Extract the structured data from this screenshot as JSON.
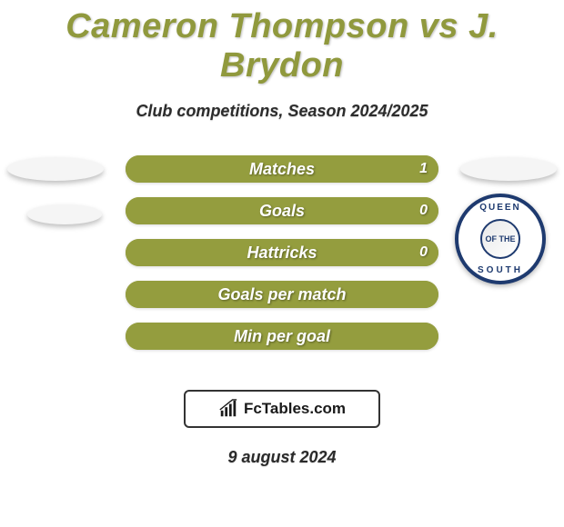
{
  "title": "Cameron Thompson vs J. Brydon",
  "subtitle": "Club competitions, Season 2024/2025",
  "date": "9 august 2024",
  "brand": "FcTables.com",
  "colors": {
    "left": "#949d3e",
    "right": "#949d3e",
    "row_bg": "#949d3e",
    "title": "#90993d"
  },
  "club_right": {
    "top_text": "QUEEN",
    "bottom_text": "SOUTH",
    "inner_text": "OF THE"
  },
  "rows": [
    {
      "label": "Matches",
      "left_pct": 50,
      "right_pct": 50,
      "right_value": "1"
    },
    {
      "label": "Goals",
      "left_pct": 50,
      "right_pct": 50,
      "right_value": "0"
    },
    {
      "label": "Hattricks",
      "left_pct": 50,
      "right_pct": 50,
      "right_value": "0"
    },
    {
      "label": "Goals per match",
      "left_pct": 50,
      "right_pct": 50,
      "right_value": ""
    },
    {
      "label": "Min per goal",
      "left_pct": 50,
      "right_pct": 50,
      "right_value": ""
    }
  ]
}
